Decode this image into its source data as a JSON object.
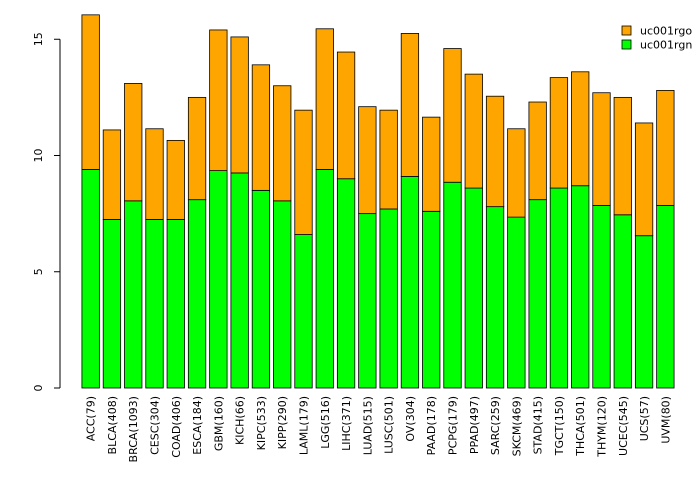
{
  "chart_data": {
    "type": "bar",
    "stacked": true,
    "title": "",
    "xlabel": "",
    "ylabel": "",
    "ylim": [
      0,
      16
    ],
    "yticks": [
      0,
      5,
      10,
      15
    ],
    "legend_position": "top-right",
    "categories": [
      "ACC(79)",
      "BLCA(408)",
      "BRCA(1093)",
      "CESC(304)",
      "COAD(406)",
      "ESCA(184)",
      "GBM(160)",
      "KICH(66)",
      "KIPC(533)",
      "KIPP(290)",
      "LAML(179)",
      "LGG(516)",
      "LIHC(371)",
      "LUAD(515)",
      "LUSC(501)",
      "OV(304)",
      "PAAD(178)",
      "PCPG(179)",
      "PPAD(497)",
      "SARC(259)",
      "SKCM(469)",
      "STAD(415)",
      "TGCT(150)",
      "THCA(501)",
      "THYM(120)",
      "UCEC(545)",
      "UCS(57)",
      "UVM(80)"
    ],
    "series": [
      {
        "name": "uc001rgn",
        "color": "#00ff00",
        "values": [
          9.4,
          7.25,
          8.05,
          7.25,
          7.25,
          8.1,
          9.35,
          9.25,
          8.5,
          8.05,
          6.6,
          9.4,
          9.0,
          7.5,
          7.7,
          9.1,
          7.6,
          8.85,
          8.6,
          7.8,
          7.35,
          8.1,
          8.6,
          8.7,
          7.85,
          7.45,
          6.55,
          7.85
        ]
      },
      {
        "name": "uc001rgo",
        "color": "#ffa500",
        "values": [
          6.65,
          3.85,
          5.05,
          3.9,
          3.4,
          4.4,
          6.05,
          5.85,
          5.4,
          4.95,
          5.35,
          6.05,
          5.45,
          4.6,
          4.25,
          6.15,
          4.05,
          5.75,
          4.9,
          4.75,
          3.8,
          4.2,
          4.75,
          4.9,
          4.85,
          5.05,
          4.85,
          4.95
        ]
      }
    ]
  }
}
